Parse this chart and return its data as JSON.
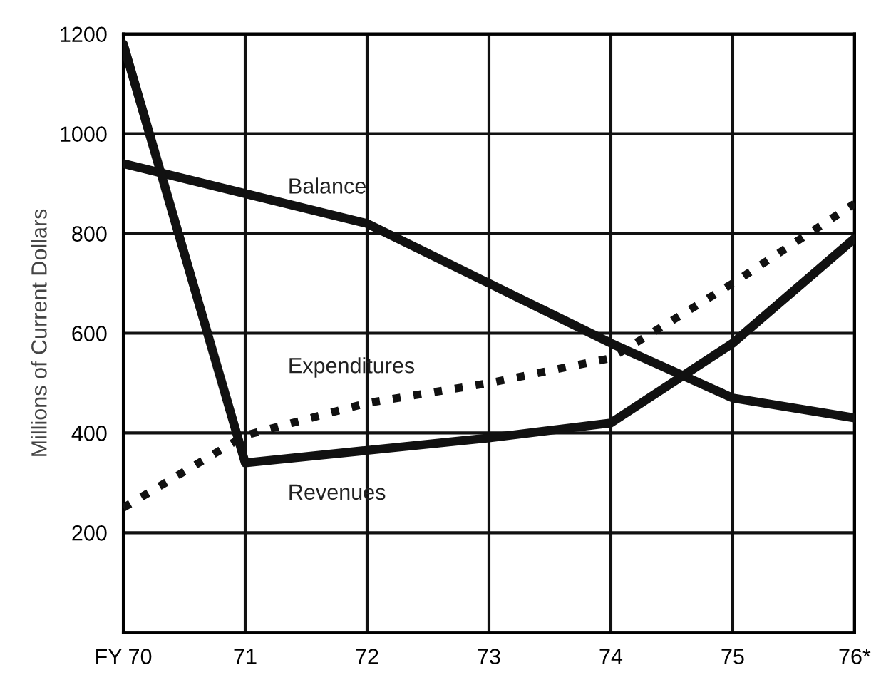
{
  "chart_data": {
    "type": "line",
    "ylabel": "Millions of Current Dollars",
    "categories": [
      "FY 70",
      "71",
      "72",
      "73",
      "74",
      "75",
      "76*"
    ],
    "ylim": [
      0,
      1200
    ],
    "yticks": [
      {
        "value": 0,
        "label": null
      },
      200,
      400,
      600,
      800,
      1000,
      1200
    ],
    "grid": true,
    "legend": false,
    "marker": "none",
    "series": [
      {
        "name": "Balance",
        "color": "#111111",
        "line_style": "solid",
        "values": [
          940,
          880,
          820,
          700,
          580,
          470,
          430
        ]
      },
      {
        "name": "Expenditures",
        "color": "#111111",
        "line_style": "dotted",
        "values": [
          250,
          395,
          460,
          500,
          550,
          700,
          860
        ]
      },
      {
        "name": "Revenues",
        "color": "#111111",
        "line_style": "solid",
        "values": [
          1180,
          340,
          365,
          390,
          420,
          580,
          790
        ]
      }
    ]
  }
}
